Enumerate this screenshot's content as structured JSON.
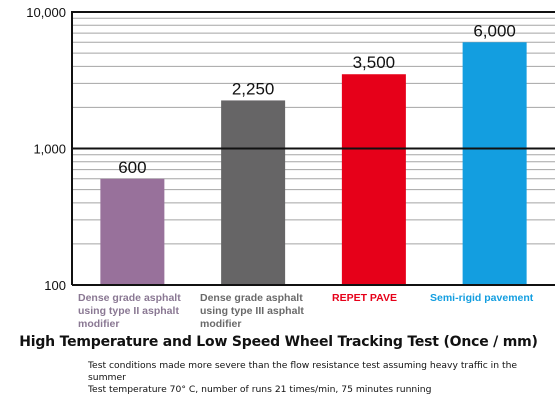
{
  "chart_data": {
    "type": "bar",
    "title": "High Temperature and Low Speed Wheel Tracking Test (Once / mm)",
    "xlabel": "",
    "ylabel": "",
    "yscale": "log",
    "ylim": [
      100,
      10000
    ],
    "yticks": [
      {
        "value": 100,
        "label": "100"
      },
      {
        "value": 1000,
        "label": "1,000"
      },
      {
        "value": 10000,
        "label": "10,000"
      }
    ],
    "grid": true,
    "categories": [
      "Dense grade asphalt using type II asphalt modifier",
      "Dense grade asphalt using type III asphalt modifier",
      "REPET PAVE",
      "Semi-rigid pavement"
    ],
    "category_label_lines": [
      [
        "Dense grade asphalt",
        "using type II asphalt",
        "modifier"
      ],
      [
        "Dense grade asphalt",
        "using type III asphalt",
        "modifier"
      ],
      [
        "REPET PAVE"
      ],
      [
        "Semi-rigid pavement"
      ]
    ],
    "values": [
      600,
      2250,
      3500,
      6000
    ],
    "value_labels": [
      "600",
      "2,250",
      "3,500",
      "6,000"
    ],
    "bar_colors": [
      "#98719b",
      "#666566",
      "#e60019",
      "#139ee0"
    ],
    "label_colors": [
      "#8a7893",
      "#6a6a6a",
      "#e60019",
      "#139ee0"
    ]
  },
  "notes": [
    "Test conditions made more severe than the flow resistance test assuming heavy traffic in the summer",
    "Test temperature 70° C, number of runs 21 times/min, 75 minutes running"
  ]
}
